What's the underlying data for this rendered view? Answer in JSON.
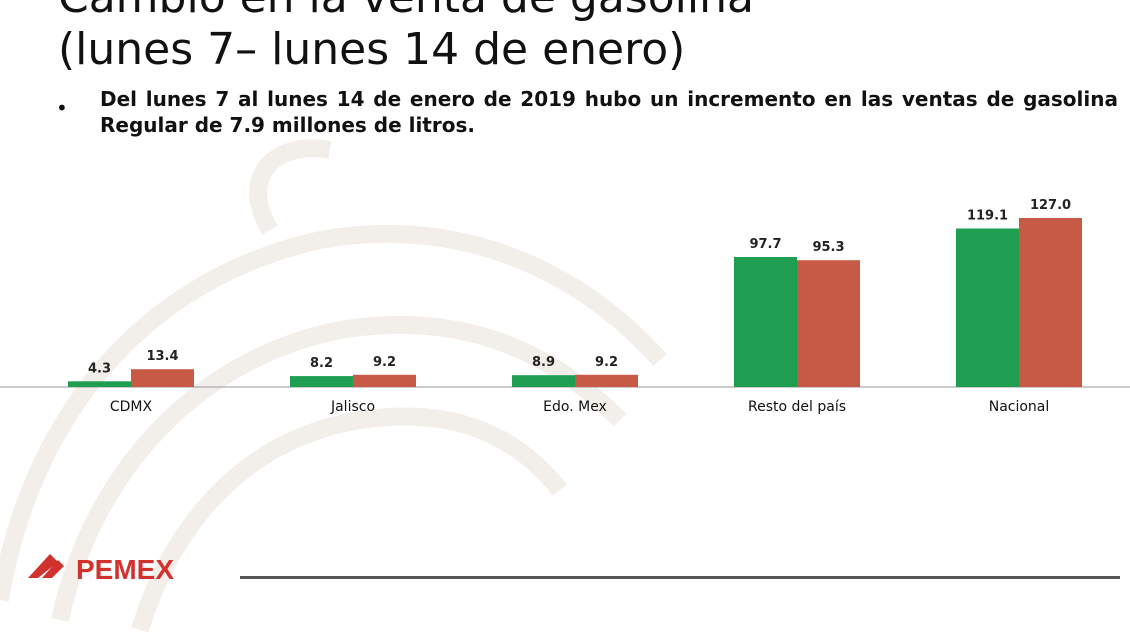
{
  "title_line1": "Cambio en la venta de gasolina",
  "title_line2": "(lunes 7– lunes 14 de enero)",
  "bullet": "Del lunes 7 al lunes 14 de enero de 2019 hubo un incremento en las ventas de gasolina Regular de 7.9 millones de litros.",
  "logo_text": "PEMEX",
  "colors": {
    "series1": "#1f9e52",
    "series2": "#c75a45"
  },
  "chart_data": {
    "type": "bar",
    "categories": [
      "CDMX",
      "Jalisco",
      "Edo. Mex",
      "Resto del país",
      "Nacional"
    ],
    "series": [
      {
        "values": [
          4.3,
          8.2,
          8.9,
          97.7,
          119.1
        ]
      },
      {
        "values": [
          13.4,
          9.2,
          9.2,
          95.3,
          127.0
        ]
      }
    ],
    "labels": [
      [
        "4.3",
        "8.2",
        "8.9",
        "97.7",
        "119.1"
      ],
      [
        "13.4",
        "9.2",
        "9.2",
        "95.3",
        "127.0"
      ]
    ],
    "ylim": [
      0,
      127
    ],
    "grid": false,
    "legend": "none"
  }
}
